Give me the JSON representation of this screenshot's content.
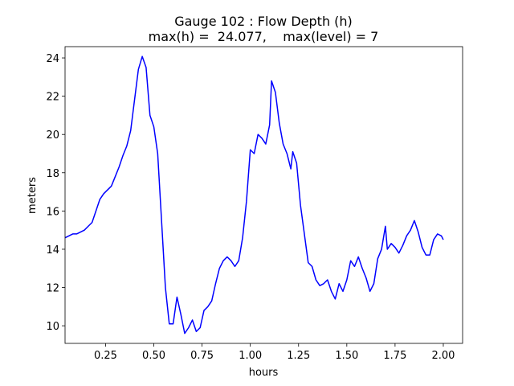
{
  "chart_data": {
    "type": "line",
    "title": "Gauge 102 : Flow Depth (h)",
    "subtitle": "max(h) =  24.077,    max(level) = 7",
    "x_label": "hours",
    "y_label": "meters",
    "x": [
      0.04,
      0.06,
      0.08,
      0.1,
      0.12,
      0.14,
      0.16,
      0.18,
      0.2,
      0.22,
      0.24,
      0.26,
      0.28,
      0.3,
      0.32,
      0.34,
      0.36,
      0.38,
      0.4,
      0.42,
      0.44,
      0.46,
      0.48,
      0.5,
      0.52,
      0.54,
      0.56,
      0.58,
      0.6,
      0.62,
      0.64,
      0.66,
      0.68,
      0.7,
      0.72,
      0.74,
      0.76,
      0.78,
      0.8,
      0.82,
      0.84,
      0.86,
      0.88,
      0.9,
      0.92,
      0.94,
      0.96,
      0.98,
      1.0,
      1.02,
      1.04,
      1.06,
      1.08,
      1.1,
      1.11,
      1.13,
      1.15,
      1.17,
      1.19,
      1.21,
      1.22,
      1.24,
      1.26,
      1.28,
      1.3,
      1.32,
      1.34,
      1.36,
      1.38,
      1.4,
      1.42,
      1.44,
      1.46,
      1.48,
      1.5,
      1.52,
      1.54,
      1.56,
      1.58,
      1.6,
      1.62,
      1.64,
      1.66,
      1.68,
      1.7,
      1.71,
      1.73,
      1.75,
      1.77,
      1.79,
      1.81,
      1.83,
      1.85,
      1.87,
      1.89,
      1.91,
      1.93,
      1.95,
      1.97,
      1.99,
      2.0
    ],
    "series": [
      {
        "name": "h",
        "color": "#0000ff",
        "values": [
          14.6,
          14.7,
          14.8,
          14.8,
          14.9,
          15.0,
          15.2,
          15.4,
          16.0,
          16.6,
          16.9,
          17.1,
          17.3,
          17.8,
          18.3,
          18.9,
          19.4,
          20.2,
          21.8,
          23.4,
          24.077,
          23.5,
          21.0,
          20.4,
          19.0,
          15.5,
          12.0,
          10.1,
          10.1,
          11.5,
          10.6,
          9.6,
          9.9,
          10.3,
          9.7,
          9.9,
          10.8,
          11.0,
          11.3,
          12.2,
          13.0,
          13.4,
          13.6,
          13.4,
          13.1,
          13.4,
          14.6,
          16.5,
          19.2,
          19.0,
          20.0,
          19.8,
          19.5,
          20.5,
          22.8,
          22.2,
          20.6,
          19.5,
          19.0,
          18.2,
          19.1,
          18.5,
          16.3,
          14.8,
          13.3,
          13.1,
          12.4,
          12.1,
          12.2,
          12.4,
          11.8,
          11.4,
          12.2,
          11.8,
          12.4,
          13.4,
          13.1,
          13.6,
          13.0,
          12.5,
          11.8,
          12.2,
          13.5,
          14.0,
          15.2,
          14.0,
          14.3,
          14.1,
          13.8,
          14.2,
          14.7,
          15.0,
          15.5,
          14.9,
          14.1,
          13.7,
          13.7,
          14.5,
          14.8,
          14.7,
          14.5
        ]
      }
    ],
    "xlim": [
      0.04,
      2.1
    ],
    "ylim": [
      9.08,
      24.59
    ],
    "xticks": [
      0.25,
      {
        "value": 0.5,
        "label": "0.50"
      },
      0.75,
      {
        "value": 1.0,
        "label": "1.00"
      },
      1.25,
      {
        "value": 1.5,
        "label": "1.50"
      },
      1.75,
      {
        "value": 2.0,
        "label": "2.00"
      }
    ],
    "yticks": [
      10,
      12,
      14,
      16,
      18,
      20,
      22,
      24
    ],
    "grid": false
  }
}
